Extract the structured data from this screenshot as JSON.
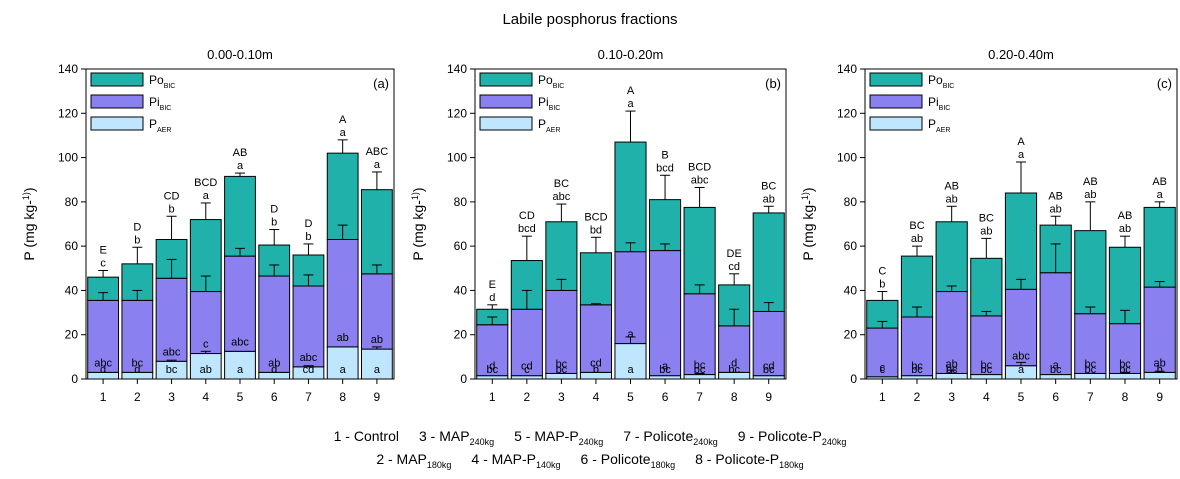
{
  "figure_title": "Labile posphorus fractions",
  "colors": {
    "po": "#20b2aa",
    "pi": "#8a80f0",
    "paer": "#bfe6ff",
    "stroke": "#000000"
  },
  "legend_labels": [
    {
      "main": "Po",
      "sub": "BIC"
    },
    {
      "main": "Pi",
      "sub": "BIC"
    },
    {
      "main": "P",
      "sub": "AER"
    }
  ],
  "footer": {
    "row1": [
      {
        "main": "1 - Control",
        "sub": ""
      },
      {
        "main": "3 - MAP",
        "sub": "240kg"
      },
      {
        "main": "5 - MAP-P",
        "sub": "240kg"
      },
      {
        "main": "7 - Policote",
        "sub": "240kg"
      },
      {
        "main": "9 - Policote-P",
        "sub": "240kg"
      }
    ],
    "row2": [
      {
        "main": "2 - MAP",
        "sub": "180kg"
      },
      {
        "main": "4 - MAP-P",
        "sub": "140kg"
      },
      {
        "main": "6 - Policote",
        "sub": "180kg"
      },
      {
        "main": "8 - Policote-P",
        "sub": "180kg"
      }
    ]
  },
  "chart_data": [
    {
      "type": "bar",
      "stacked": true,
      "title": "0.00-0.10m",
      "panel_label": "(a)",
      "ylabel": "P (mg kg-1)",
      "ylim": [
        0,
        140
      ],
      "yticks": [
        0,
        20,
        40,
        60,
        80,
        100,
        120,
        140
      ],
      "categories": [
        "1",
        "2",
        "3",
        "4",
        "5",
        "6",
        "7",
        "8",
        "9"
      ],
      "legend_position": "top-left",
      "series": [
        {
          "name": "PAER",
          "values": [
            3,
            3,
            8,
            11.5,
            12.5,
            3,
            5.5,
            14.5,
            13.5
          ],
          "errors": [
            0,
            0,
            0.5,
            1,
            0,
            0,
            0.5,
            0,
            1
          ],
          "letters": [
            "d",
            "d",
            "bc",
            "ab",
            "a",
            "d",
            "cd",
            "a",
            "a"
          ]
        },
        {
          "name": "PiBIC",
          "values": [
            32.5,
            32.5,
            37.5,
            28,
            43,
            43.5,
            36.5,
            48.5,
            34
          ],
          "errors": [
            3.5,
            4.5,
            8.5,
            7,
            3.5,
            5,
            5,
            6.5,
            4
          ],
          "letters": [
            "abc",
            "bc",
            "abc",
            "c",
            "abc",
            "ab",
            "abc",
            "ab",
            "ab"
          ]
        },
        {
          "name": "PoBIC",
          "values": [
            10.5,
            16.5,
            17.5,
            32.5,
            36,
            14,
            14,
            39,
            38
          ],
          "errors": [
            3,
            7.5,
            10.5,
            7.5,
            1.5,
            7,
            5,
            6,
            8
          ],
          "letters": [
            "c",
            "b",
            "b",
            "a",
            "a",
            "b",
            "b",
            "a",
            "a"
          ]
        }
      ],
      "total_letters": [
        "E",
        "D",
        "CD",
        "BCD",
        "AB",
        "D",
        "D",
        "A",
        "ABC"
      ]
    },
    {
      "type": "bar",
      "stacked": true,
      "title": "0.10-0.20m",
      "panel_label": "(b)",
      "ylabel": "P (mg kg-1)",
      "ylim": [
        0,
        140
      ],
      "yticks": [
        0,
        20,
        40,
        60,
        80,
        100,
        120,
        140
      ],
      "categories": [
        "1",
        "2",
        "3",
        "4",
        "5",
        "6",
        "7",
        "8",
        "9"
      ],
      "legend_position": "top-left",
      "series": [
        {
          "name": "PAER",
          "values": [
            1.5,
            1.5,
            2.5,
            3,
            16,
            1.5,
            2,
            3,
            1.5
          ],
          "errors": [
            0,
            0,
            0,
            0,
            3,
            0,
            0.5,
            0,
            0
          ],
          "letters": [
            "bc",
            "c",
            "bc",
            "b",
            "a",
            "bc",
            "bc",
            "bc",
            "bc"
          ]
        },
        {
          "name": "PiBIC",
          "values": [
            23,
            30,
            37.5,
            30.5,
            41.5,
            56.5,
            36.5,
            21,
            29
          ],
          "errors": [
            3.5,
            8.5,
            5,
            0.5,
            4,
            3,
            4,
            7.5,
            4
          ],
          "letters": [
            "d",
            "cd",
            "bc",
            "cd",
            "a",
            "a",
            "bc",
            "d",
            "cd"
          ]
        },
        {
          "name": "PoBIC",
          "values": [
            7,
            22,
            31,
            23.5,
            49.5,
            23,
            39,
            18.5,
            44.5
          ],
          "errors": [
            2,
            11,
            8,
            7,
            14,
            11,
            9,
            5,
            3
          ],
          "letters": [
            "d",
            "bcd",
            "abc",
            "bd",
            "a",
            "bcd",
            "abc",
            "cd",
            "ab"
          ]
        }
      ],
      "total_letters": [
        "E",
        "CD",
        "BC",
        "BCD",
        "A",
        "B",
        "BCD",
        "DE",
        "BC"
      ]
    },
    {
      "type": "bar",
      "stacked": true,
      "title": "0.20-0.40m",
      "panel_label": "(c)",
      "ylabel": "P (mg kg-1)",
      "ylim": [
        0,
        140
      ],
      "yticks": [
        0,
        20,
        40,
        60,
        80,
        100,
        120,
        140
      ],
      "categories": [
        "1",
        "2",
        "3",
        "4",
        "5",
        "6",
        "7",
        "8",
        "9"
      ],
      "legend_position": "top-left",
      "series": [
        {
          "name": "PAER",
          "values": [
            1,
            1.5,
            2.5,
            2,
            6,
            2,
            2.5,
            2.5,
            3
          ],
          "errors": [
            0,
            0,
            1.5,
            0,
            1.5,
            0,
            0,
            0.5,
            0.5
          ],
          "letters": [
            "c",
            "bc",
            "bc",
            "bc",
            "a",
            "bc",
            "bc",
            "bc",
            "b"
          ]
        },
        {
          "name": "PiBIC",
          "values": [
            22,
            26.5,
            37,
            26.5,
            34.5,
            46,
            27,
            22.5,
            38.5
          ],
          "errors": [
            3,
            4.5,
            2.5,
            2,
            4.5,
            13,
            3,
            6,
            2.5
          ],
          "letters": [
            "c",
            "bc",
            "ab",
            "bc",
            "abc",
            "a",
            "bc",
            "bc",
            "ab"
          ]
        },
        {
          "name": "PoBIC",
          "values": [
            12.5,
            27.5,
            31.5,
            26,
            43.5,
            21.5,
            37.5,
            34.5,
            36
          ],
          "errors": [
            4,
            4.5,
            7,
            9,
            14,
            4,
            13,
            5,
            2.5
          ],
          "letters": [
            "b",
            "ab",
            "ab",
            "ab",
            "a",
            "ab",
            "ab",
            "ab",
            "a"
          ]
        }
      ],
      "total_letters": [
        "C",
        "BC",
        "AB",
        "BC",
        "A",
        "AB",
        "AB",
        "AB",
        "AB"
      ]
    }
  ]
}
